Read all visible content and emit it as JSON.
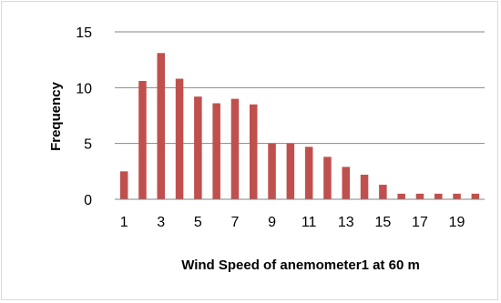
{
  "chart_data": {
    "type": "bar",
    "title": "",
    "xlabel": "Wind Speed of anemometer1 at 60 m",
    "ylabel": "Frequency",
    "ylim": [
      0,
      15
    ],
    "yticks": [
      0,
      5,
      10,
      15
    ],
    "grid": true,
    "legend": "none",
    "bar_color": "#c0504d",
    "categories": [
      "1",
      "2",
      "3",
      "4",
      "5",
      "6",
      "7",
      "8",
      "9",
      "10",
      "11",
      "12",
      "13",
      "14",
      "15",
      "16",
      "17",
      "18",
      "19",
      "20"
    ],
    "x_tick_labels": [
      "1",
      "3",
      "5",
      "7",
      "9",
      "11",
      "13",
      "15",
      "17",
      "19"
    ],
    "values": [
      2.5,
      10.6,
      13.1,
      10.8,
      9.2,
      8.6,
      9.0,
      8.5,
      5.0,
      5.0,
      4.7,
      3.8,
      2.9,
      2.2,
      1.3,
      0.5,
      0.5,
      0.5,
      0.5,
      0.5
    ]
  }
}
